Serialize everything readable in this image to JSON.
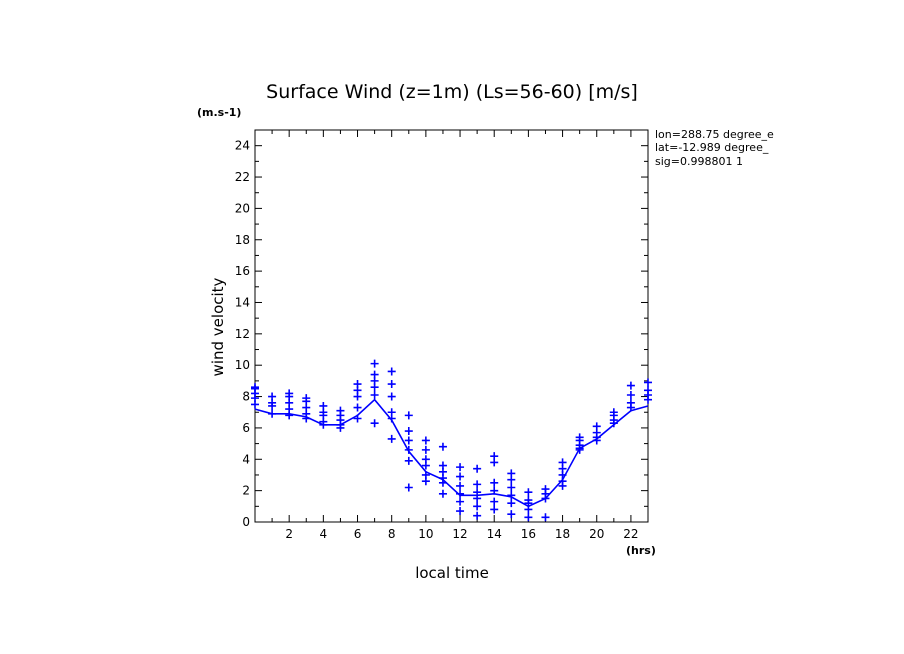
{
  "chart_data": {
    "type": "scatter",
    "title": "Surface Wind (z=1m) (Ls=56-60) [m/s]",
    "xlabel": "local time",
    "ylabel": "wind velocity",
    "x_unit": "(hrs)",
    "y_unit": "(m.s-1)",
    "xlim": [
      0,
      23
    ],
    "ylim": [
      0,
      25
    ],
    "x_ticks": [
      2,
      4,
      6,
      8,
      10,
      12,
      14,
      16,
      18,
      20,
      22
    ],
    "y_ticks": [
      0,
      2,
      4,
      6,
      8,
      10,
      12,
      14,
      16,
      18,
      20,
      22,
      24
    ],
    "annotations": [
      "lon=288.75 degree_e",
      "lat=-12.989 degree_",
      "sig=0.998801 1"
    ],
    "color": "#0000ff",
    "series": [
      {
        "name": "mean",
        "style": "line",
        "x": [
          0,
          1,
          2,
          3,
          4,
          5,
          6,
          7,
          8,
          9,
          10,
          11,
          12,
          13,
          14,
          15,
          16,
          17,
          18,
          19,
          20,
          21,
          22,
          23
        ],
        "y": [
          7.2,
          6.9,
          6.9,
          6.7,
          6.2,
          6.2,
          6.8,
          7.8,
          6.5,
          4.5,
          3.2,
          2.7,
          1.7,
          1.7,
          1.8,
          1.6,
          1.0,
          1.5,
          2.7,
          4.7,
          5.3,
          6.2,
          7.1,
          7.4
        ]
      },
      {
        "name": "samples",
        "style": "markers",
        "points": [
          {
            "x": 0,
            "ys": [
              8.6,
              8.5,
              8.2,
              7.9,
              7.5
            ]
          },
          {
            "x": 1,
            "ys": [
              8.0,
              7.6,
              7.4,
              6.9
            ]
          },
          {
            "x": 2,
            "ys": [
              8.2,
              8.0,
              7.6,
              7.2,
              6.8
            ]
          },
          {
            "x": 3,
            "ys": [
              7.9,
              7.7,
              7.3,
              6.9,
              6.6
            ]
          },
          {
            "x": 4,
            "ys": [
              7.4,
              7.0,
              6.8,
              6.4,
              6.2
            ]
          },
          {
            "x": 5,
            "ys": [
              7.1,
              6.8,
              6.5,
              6.2,
              6.0
            ]
          },
          {
            "x": 6,
            "ys": [
              8.8,
              8.4,
              8.0,
              7.3,
              6.6
            ]
          },
          {
            "x": 7,
            "ys": [
              10.1,
              9.4,
              9.0,
              8.6,
              8.1,
              6.3
            ]
          },
          {
            "x": 8,
            "ys": [
              9.6,
              8.8,
              8.0,
              7.0,
              6.6,
              5.3
            ]
          },
          {
            "x": 9,
            "ys": [
              6.8,
              5.8,
              5.2,
              4.6,
              3.9,
              2.2
            ]
          },
          {
            "x": 10,
            "ys": [
              5.2,
              4.6,
              4.0,
              3.6,
              3.0,
              2.6
            ]
          },
          {
            "x": 11,
            "ys": [
              4.8,
              3.6,
              3.2,
              2.8,
              2.5,
              1.8
            ]
          },
          {
            "x": 12,
            "ys": [
              3.5,
              2.9,
              2.3,
              1.8,
              1.3,
              0.7
            ]
          },
          {
            "x": 13,
            "ys": [
              3.4,
              2.4,
              1.9,
              1.5,
              1.0,
              0.4
            ]
          },
          {
            "x": 14,
            "ys": [
              4.2,
              3.8,
              2.5,
              2.0,
              1.3,
              0.8
            ]
          },
          {
            "x": 15,
            "ys": [
              3.1,
              2.7,
              2.2,
              1.7,
              1.2,
              0.5
            ]
          },
          {
            "x": 16,
            "ys": [
              1.9,
              1.4,
              1.2,
              0.8,
              0.3
            ]
          },
          {
            "x": 17,
            "ys": [
              2.1,
              1.8,
              1.5,
              0.3
            ]
          },
          {
            "x": 18,
            "ys": [
              3.8,
              3.4,
              3.0,
              2.6,
              2.3
            ]
          },
          {
            "x": 19,
            "ys": [
              5.4,
              5.2,
              4.9,
              4.7,
              4.6
            ]
          },
          {
            "x": 20,
            "ys": [
              6.1,
              5.7,
              5.4,
              5.2
            ]
          },
          {
            "x": 21,
            "ys": [
              7.0,
              6.8,
              6.5,
              6.3
            ]
          },
          {
            "x": 22,
            "ys": [
              8.7,
              8.1,
              7.6,
              7.3
            ]
          },
          {
            "x": 23,
            "ys": [
              8.9,
              8.4,
              8.1,
              7.8
            ]
          }
        ]
      }
    ]
  }
}
